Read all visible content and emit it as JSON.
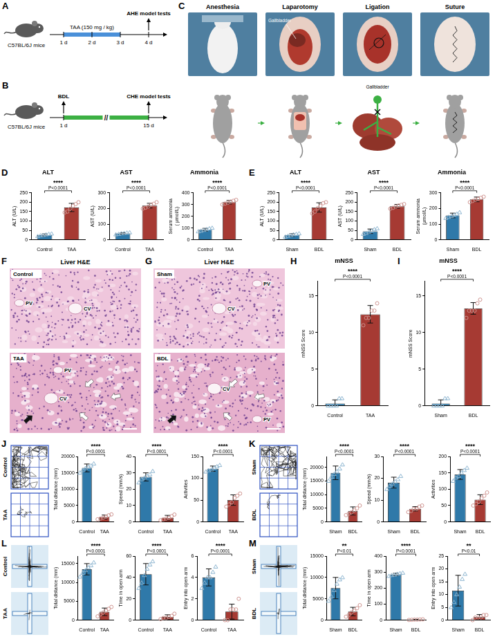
{
  "panels": [
    {
      "letter": "A",
      "mouse_label": "C57BL/6J mice",
      "treatment": "TAA (150 mg / kg)",
      "days": [
        "1 d",
        "2 d",
        "3 d",
        "4 d"
      ],
      "endpoint": "AHE model tests"
    },
    {
      "letter": "B",
      "mouse_label": "C57BL/6J mice",
      "surgery": "BDL",
      "days": [
        "1 d",
        "15 d"
      ],
      "break": "//",
      "endpoint": "CHE model tests"
    },
    {
      "letter": "C",
      "steps": [
        "Anesthesia",
        "Laparotomy",
        "Ligation",
        "Suture"
      ],
      "photo_label": "Gallbladder",
      "cartoon_label": "Gallbladder"
    },
    {
      "letter": "F",
      "title": "Liver H&E",
      "images": [
        {
          "label": "Control",
          "vessels": [
            "PV",
            "CV"
          ]
        },
        {
          "label": "TAA",
          "vessels": [
            "PV",
            "CV"
          ]
        }
      ]
    },
    {
      "letter": "G",
      "title": "Liver H&E",
      "images": [
        {
          "label": "Sham",
          "vessels": [
            "PV",
            "CV"
          ]
        },
        {
          "label": "BDL",
          "vessels": [
            "PV",
            "CV"
          ]
        }
      ]
    }
  ],
  "chart_data": [
    {
      "type": "bar",
      "panel": "D",
      "title": "ALT",
      "y_label": "ALT (U/L)",
      "categories": [
        "Control",
        "TAA"
      ],
      "values": [
        25,
        172
      ],
      "errors": [
        6,
        22
      ],
      "points": [
        [
          18,
          22,
          24,
          27,
          30,
          32
        ],
        [
          145,
          150,
          165,
          180,
          190,
          200
        ]
      ],
      "colors": [
        "#2f79a9",
        "#a63a33"
      ],
      "ylim": [
        0,
        250
      ],
      "yticks": [
        0,
        50,
        100,
        150,
        200,
        250
      ],
      "annotations": [
        "****",
        "P<0.0001"
      ]
    },
    {
      "type": "bar",
      "panel": "D",
      "title": "AST",
      "y_label": "AST (U/L)",
      "categories": [
        "Control",
        "TAA"
      ],
      "values": [
        40,
        218
      ],
      "errors": [
        5,
        15
      ],
      "points": [
        [
          33,
          36,
          40,
          42,
          44,
          46
        ],
        [
          198,
          205,
          212,
          225,
          230,
          240
        ]
      ],
      "colors": [
        "#2f79a9",
        "#a63a33"
      ],
      "ylim": [
        0,
        300
      ],
      "yticks": [
        0,
        100,
        200,
        300
      ],
      "annotations": [
        "****",
        "P<0.0001"
      ]
    },
    {
      "type": "bar",
      "panel": "D",
      "title": "Ammonia",
      "y_label": "Serum ammonia ( μmol/L)",
      "categories": [
        "Control",
        "TAA"
      ],
      "values": [
        85,
        320
      ],
      "errors": [
        12,
        15
      ],
      "points": [
        [
          70,
          75,
          82,
          88,
          95,
          100
        ],
        [
          300,
          308,
          315,
          325,
          332,
          340
        ]
      ],
      "colors": [
        "#2f79a9",
        "#a63a33"
      ],
      "ylim": [
        0,
        400
      ],
      "yticks": [
        0,
        100,
        200,
        300,
        400
      ],
      "annotations": [
        "****",
        "P<0.0001"
      ]
    },
    {
      "type": "bar",
      "panel": "E",
      "title": "ALT",
      "y_label": "ALT (U/L)",
      "categories": [
        "Sham",
        "BDL"
      ],
      "values": [
        25,
        172
      ],
      "errors": [
        7,
        25
      ],
      "points": [
        [
          15,
          20,
          24,
          28,
          30,
          33
        ],
        [
          140,
          150,
          168,
          180,
          195,
          200
        ]
      ],
      "colors": [
        "#2f79a9",
        "#a63a33"
      ],
      "ylim": [
        0,
        250
      ],
      "yticks": [
        0,
        50,
        100,
        150,
        200,
        250
      ],
      "annotations": [
        "****",
        "P<0.0001"
      ]
    },
    {
      "type": "bar",
      "panel": "E",
      "title": "AST",
      "y_label": "AST (U/L)",
      "categories": [
        "Sham",
        "BDL"
      ],
      "values": [
        45,
        178
      ],
      "errors": [
        12,
        10
      ],
      "points": [
        [
          30,
          35,
          42,
          48,
          55,
          60
        ],
        [
          165,
          170,
          176,
          182,
          186,
          190
        ]
      ],
      "colors": [
        "#2f79a9",
        "#a63a33"
      ],
      "ylim": [
        0,
        250
      ],
      "yticks": [
        0,
        50,
        100,
        150,
        200,
        250
      ],
      "annotations": [
        "****",
        "P<0.0001"
      ]
    },
    {
      "type": "bar",
      "panel": "E",
      "title": "Ammonia",
      "y_label": "Serum ammonia (μmol/L)",
      "categories": [
        "Sham",
        "BDL"
      ],
      "values": [
        155,
        258
      ],
      "errors": [
        15,
        15
      ],
      "points": [
        [
          138,
          145,
          150,
          158,
          165,
          175
        ],
        [
          240,
          248,
          255,
          262,
          268,
          275
        ]
      ],
      "colors": [
        "#2f79a9",
        "#a63a33"
      ],
      "ylim": [
        0,
        300
      ],
      "yticks": [
        0,
        100,
        200,
        300
      ],
      "annotations": [
        "****",
        "P<0.0001"
      ]
    },
    {
      "type": "bar",
      "panel": "H",
      "title": "mNSS",
      "y_label": "mNSS Score",
      "categories": [
        "Control",
        "TAA"
      ],
      "values": [
        0.3,
        12.5
      ],
      "errors": [
        0.5,
        1.2
      ],
      "points": [
        [
          0,
          0,
          0,
          0,
          1,
          1
        ],
        [
          11,
          12,
          12,
          13,
          13,
          14
        ]
      ],
      "colors": [
        "#2f79a9",
        "#a63a33"
      ],
      "ylim": [
        0,
        17
      ],
      "yticks": [
        0,
        5,
        10,
        15
      ],
      "annotations": [
        "****",
        "P<0.0001"
      ]
    },
    {
      "type": "bar",
      "panel": "I",
      "title": "mNSS",
      "y_label": "mNSS Score",
      "categories": [
        "Sham",
        "BDL"
      ],
      "values": [
        0.3,
        13.3
      ],
      "errors": [
        0.5,
        0.8
      ],
      "points": [
        [
          0,
          0,
          0,
          0,
          1,
          1
        ],
        [
          12,
          13,
          13,
          13,
          14,
          14.5
        ]
      ],
      "colors": [
        "#2f79a9",
        "#a63a33"
      ],
      "ylim": [
        0,
        17
      ],
      "yticks": [
        0,
        5,
        10,
        15
      ],
      "annotations": [
        "****",
        "P<0.0001"
      ]
    },
    {
      "type": "bar",
      "panel": "J",
      "y_label": "Total distance (mm)",
      "categories": [
        "Control",
        "TAA"
      ],
      "values": [
        16500,
        1500
      ],
      "errors": [
        1200,
        600
      ],
      "points": [
        [
          15000,
          15800,
          16400,
          16800,
          17200,
          17800
        ],
        [
          800,
          1000,
          1300,
          1600,
          2000,
          2300
        ]
      ],
      "colors": [
        "#2f79a9",
        "#a63a33"
      ],
      "ylim": [
        0,
        20000
      ],
      "yticks": [
        0,
        5000,
        10000,
        15000,
        20000
      ],
      "annotations": [
        "****",
        "P<0.0001"
      ]
    },
    {
      "type": "bar",
      "panel": "J",
      "y_label": "Speed (mm/s)",
      "categories": [
        "Control",
        "TAA"
      ],
      "values": [
        27.5,
        2.5
      ],
      "errors": [
        2.5,
        1.5
      ],
      "points": [
        [
          24,
          26,
          27,
          28,
          29,
          31
        ],
        [
          1,
          1.5,
          2,
          2.5,
          3.5,
          4.5
        ]
      ],
      "colors": [
        "#2f79a9",
        "#a63a33"
      ],
      "ylim": [
        0,
        40
      ],
      "yticks": [
        0,
        10,
        20,
        30,
        40
      ],
      "annotations": [
        "****",
        "P<0.0001"
      ]
    },
    {
      "type": "bar",
      "panel": "J",
      "y_label": "Activities",
      "categories": [
        "Control",
        "TAA"
      ],
      "values": [
        122,
        50
      ],
      "errors": [
        6,
        12
      ],
      "points": [
        [
          115,
          118,
          120,
          124,
          127,
          130
        ],
        [
          35,
          40,
          45,
          55,
          60,
          65
        ]
      ],
      "colors": [
        "#2f79a9",
        "#a63a33"
      ],
      "ylim": [
        0,
        150
      ],
      "yticks": [
        0,
        50,
        100,
        150
      ],
      "annotations": [
        "****",
        "P<0.0001"
      ]
    },
    {
      "type": "bar",
      "panel": "K",
      "y_label": "Total distance (mm)",
      "categories": [
        "Sham",
        "BDL"
      ],
      "values": [
        18000,
        4000
      ],
      "errors": [
        2500,
        1500
      ],
      "points": [
        [
          15000,
          16500,
          17500,
          18500,
          19500,
          21000
        ],
        [
          2500,
          3000,
          3500,
          4200,
          5000,
          6000
        ]
      ],
      "colors": [
        "#2f79a9",
        "#a63a33"
      ],
      "ylim": [
        0,
        24000
      ],
      "yticks": [
        0,
        5000,
        10000,
        15000,
        20000
      ],
      "annotations": [
        "****",
        "P<0.0001"
      ]
    },
    {
      "type": "bar",
      "panel": "K",
      "y_label": "Speed (mm/s)",
      "categories": [
        "Sham",
        "BDL"
      ],
      "values": [
        18,
        6
      ],
      "errors": [
        2.5,
        1
      ],
      "points": [
        [
          15,
          16.5,
          17.5,
          18.5,
          19.5,
          21
        ],
        [
          4.5,
          5,
          6,
          6,
          7,
          7.5
        ]
      ],
      "colors": [
        "#2f79a9",
        "#a63a33"
      ],
      "ylim": [
        0,
        30
      ],
      "yticks": [
        0,
        10,
        20,
        30
      ],
      "annotations": [
        "****",
        "P<0.0001"
      ]
    },
    {
      "type": "bar",
      "panel": "K",
      "y_label": "Activities",
      "categories": [
        "Sham",
        "BDL"
      ],
      "values": [
        145,
        68
      ],
      "errors": [
        15,
        15
      ],
      "points": [
        [
          125,
          135,
          140,
          150,
          158,
          165
        ],
        [
          50,
          55,
          62,
          72,
          80,
          90
        ]
      ],
      "colors": [
        "#2f79a9",
        "#a63a33"
      ],
      "ylim": [
        0,
        200
      ],
      "yticks": [
        0,
        50,
        100,
        150,
        200
      ],
      "annotations": [
        "****",
        "P<0.0001"
      ]
    },
    {
      "type": "bar",
      "panel": "L",
      "y_label": "Total distance (mm)",
      "categories": [
        "Control",
        "TAA"
      ],
      "values": [
        13500,
        2200
      ],
      "errors": [
        1500,
        1000
      ],
      "points": [
        [
          11500,
          12500,
          13200,
          14000,
          14500,
          15300
        ],
        [
          1000,
          1500,
          2000,
          2500,
          3000,
          3500
        ]
      ],
      "colors": [
        "#2f79a9",
        "#a63a33"
      ],
      "ylim": [
        0,
        17000
      ],
      "yticks": [
        0,
        5000,
        10000,
        15000
      ],
      "annotations": [
        "****",
        "P<0.0001"
      ]
    },
    {
      "type": "bar",
      "panel": "L",
      "y_label": "Time in open arm",
      "categories": [
        "Control",
        "TAA"
      ],
      "values": [
        43,
        3
      ],
      "errors": [
        10,
        2
      ],
      "points": [
        [
          30,
          35,
          42,
          48,
          52,
          55
        ],
        [
          1,
          2,
          2,
          3,
          4,
          6
        ]
      ],
      "colors": [
        "#2f79a9",
        "#a63a33"
      ],
      "ylim": [
        0,
        60
      ],
      "yticks": [
        0,
        20,
        40,
        60
      ],
      "annotations": [
        "****",
        "P<0.0001"
      ]
    },
    {
      "type": "bar",
      "panel": "L",
      "y_label": "Entry into open arm",
      "categories": [
        "Control",
        "TAA"
      ],
      "values": [
        4,
        0.8
      ],
      "errors": [
        0.8,
        0.7
      ],
      "points": [
        [
          3,
          3.5,
          4,
          4,
          4.5,
          5
        ],
        [
          0,
          0,
          1,
          1,
          1,
          2
        ]
      ],
      "colors": [
        "#2f79a9",
        "#a63a33"
      ],
      "ylim": [
        0,
        6
      ],
      "yticks": [
        0,
        2,
        4,
        6
      ],
      "annotations": [
        "****",
        "P<0.0001"
      ]
    },
    {
      "type": "bar",
      "panel": "M",
      "y_label": "Total distance (mm)",
      "categories": [
        "Sham",
        "BDL"
      ],
      "values": [
        7500,
        2000
      ],
      "errors": [
        2500,
        1000
      ],
      "points": [
        [
          4500,
          5500,
          7000,
          8500,
          9500,
          10000
        ],
        [
          800,
          1200,
          1800,
          2200,
          2800,
          3500
        ]
      ],
      "colors": [
        "#2f79a9",
        "#a63a33"
      ],
      "ylim": [
        0,
        15000
      ],
      "yticks": [
        0,
        5000,
        10000,
        15000
      ],
      "annotations": [
        "**",
        "P<0.01"
      ]
    },
    {
      "type": "bar",
      "panel": "M",
      "y_label": "Time in open arm",
      "categories": [
        "Sham",
        "BDL"
      ],
      "values": [
        285,
        3
      ],
      "errors": [
        8,
        2
      ],
      "points": [
        [
          275,
          280,
          283,
          288,
          292,
          295
        ],
        [
          1,
          2,
          3,
          3,
          4,
          5
        ]
      ],
      "colors": [
        "#2f79a9",
        "#a63a33"
      ],
      "ylim": [
        0,
        400
      ],
      "yticks": [
        0,
        100,
        200,
        300,
        400
      ],
      "annotations": [
        "****",
        "P<0.0001"
      ]
    },
    {
      "type": "bar",
      "panel": "M",
      "y_label": "Entry into open arm",
      "categories": [
        "Sham",
        "BDL"
      ],
      "values": [
        11.5,
        1.2
      ],
      "errors": [
        6,
        1
      ],
      "points": [
        [
          5,
          7,
          10,
          13,
          16,
          18
        ],
        [
          0,
          1,
          1,
          1,
          2,
          2
        ]
      ],
      "colors": [
        "#2f79a9",
        "#a63a33"
      ],
      "ylim": [
        0,
        25
      ],
      "yticks": [
        0,
        5,
        10,
        15,
        20,
        25
      ],
      "annotations": [
        "**",
        "P<0.01"
      ]
    }
  ]
}
